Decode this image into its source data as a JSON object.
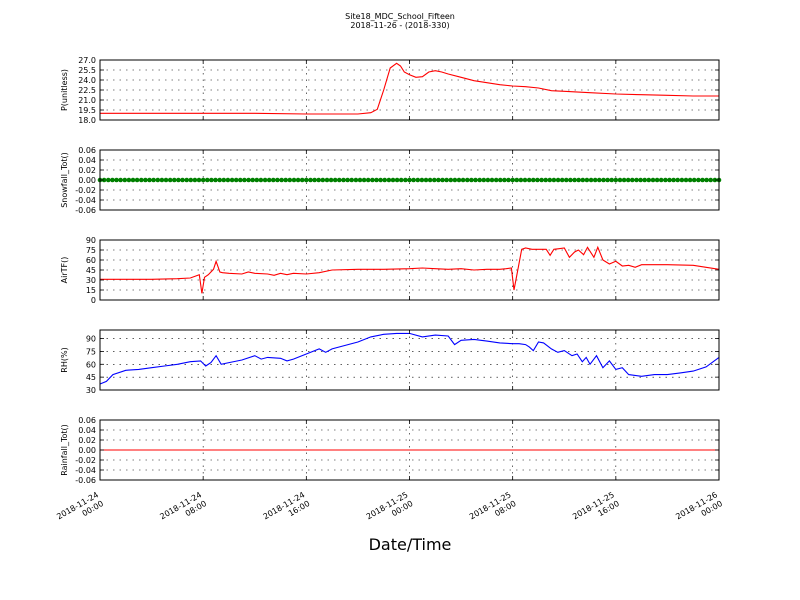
{
  "figure": {
    "title": "Site18_MDC_School_Fifteen",
    "subtitle": "2018-11-26 - (2018-330)",
    "xlabel": "Date/Time"
  },
  "chart_data": [
    {
      "type": "line",
      "ylabel": "P(unitless)",
      "ylim": [
        18.0,
        27.0
      ],
      "yticks": [
        "27.0",
        "25.5",
        "24.0",
        "22.5",
        "21.0",
        "19.5",
        "18.0"
      ],
      "xlim_hours": [
        0,
        48
      ],
      "color": "#ff0000",
      "grid": true,
      "series": [
        {
          "x_hours": [
            0,
            4,
            8,
            12,
            16,
            20,
            21,
            21.5,
            22,
            22.5,
            23,
            23.3,
            23.6,
            24,
            24.5,
            25,
            25.5,
            26,
            26.5,
            27,
            28,
            29,
            30,
            31,
            32,
            33,
            34,
            35,
            36,
            38,
            40,
            42,
            44,
            46,
            48
          ],
          "y": [
            19.0,
            19.0,
            19.0,
            19.0,
            18.9,
            18.9,
            19.1,
            19.6,
            22.5,
            25.8,
            26.5,
            26.1,
            25.2,
            24.8,
            24.4,
            24.5,
            25.2,
            25.4,
            25.2,
            24.9,
            24.4,
            23.9,
            23.6,
            23.3,
            23.1,
            23.0,
            22.8,
            22.4,
            22.3,
            22.1,
            21.9,
            21.8,
            21.7,
            21.6,
            21.6
          ]
        }
      ]
    },
    {
      "type": "line",
      "ylabel": "Snowfall_Tot()",
      "ylim": [
        -0.06,
        0.06
      ],
      "yticks": [
        "0.06",
        "0.04",
        "0.02",
        "0.00",
        "-0.02",
        "-0.04",
        "-0.06"
      ],
      "xlim_hours": [
        0,
        48
      ],
      "color": "#008000",
      "marker": true,
      "grid": true,
      "series": [
        {
          "x_hours": [
            0,
            48
          ],
          "y": [
            0.0,
            0.0
          ]
        }
      ]
    },
    {
      "type": "line",
      "ylabel": "AirTF()",
      "ylim": [
        0,
        90
      ],
      "yticks": [
        "90",
        "75",
        "60",
        "45",
        "30",
        "15",
        "0"
      ],
      "xlim_hours": [
        0,
        48
      ],
      "color": "#ff0000",
      "grid": true,
      "series": [
        {
          "x_hours": [
            0,
            2,
            4,
            6,
            7,
            7.7,
            7.9,
            8.1,
            8.4,
            8.8,
            9.0,
            9.3,
            9.5,
            10,
            11,
            11.5,
            12,
            13,
            13.5,
            14,
            14.5,
            15,
            16,
            17,
            18,
            20,
            22,
            24,
            25,
            26,
            27,
            28,
            29,
            30,
            31,
            31.5,
            31.9,
            32.1,
            32.4,
            32.7,
            33,
            33.5,
            34,
            34.6,
            34.9,
            35.2,
            35.6,
            36,
            36.4,
            36.8,
            37.1,
            37.5,
            37.8,
            38.3,
            38.6,
            39,
            39.5,
            40,
            40.5,
            41,
            41.5,
            42,
            44,
            46,
            48
          ],
          "y": [
            31,
            31,
            31,
            32,
            33,
            38,
            10,
            34,
            38,
            46,
            58,
            42,
            41,
            40,
            39,
            42,
            40,
            39,
            37,
            40,
            38,
            40,
            39,
            41,
            45,
            46,
            46,
            47,
            48,
            47,
            46,
            47,
            45,
            46,
            46,
            47,
            48,
            15,
            45,
            76,
            78,
            76,
            76,
            76,
            67,
            76,
            77,
            78,
            64,
            72,
            75,
            68,
            79,
            64,
            79,
            60,
            54,
            58,
            51,
            52,
            49,
            53,
            53,
            52,
            46
          ]
        }
      ]
    },
    {
      "type": "line",
      "ylabel": "RH(%)",
      "ylim": [
        30,
        100
      ],
      "yticks": [
        "90",
        "75",
        "60",
        "45",
        "30"
      ],
      "xlim_hours": [
        0,
        48
      ],
      "color": "#0000ff",
      "grid": true,
      "series": [
        {
          "x_hours": [
            0,
            0.5,
            1,
            2,
            3,
            4,
            5,
            6,
            7,
            7.8,
            8.2,
            8.6,
            9,
            9.4,
            10,
            11,
            12,
            12.5,
            13,
            14,
            14.5,
            15,
            16,
            17,
            17.5,
            18,
            20,
            21,
            22,
            23,
            24,
            25,
            26,
            27,
            27.5,
            28,
            29,
            30,
            31,
            32,
            32.5,
            33,
            33.3,
            33.6,
            34,
            34.4,
            35,
            35.5,
            36,
            36.6,
            37,
            37.4,
            37.7,
            38,
            38.5,
            39,
            39.5,
            40,
            40.5,
            41,
            42,
            43,
            44,
            45,
            46,
            47,
            48
          ],
          "y": [
            37,
            40,
            48,
            53,
            54,
            56,
            58,
            60,
            63,
            64,
            58,
            62,
            70,
            60,
            62,
            65,
            70,
            66,
            68,
            67,
            64,
            66,
            72,
            78,
            74,
            78,
            86,
            92,
            95,
            96,
            96,
            92,
            94,
            93,
            83,
            88,
            89,
            87,
            85,
            84,
            84,
            83,
            80,
            76,
            86,
            85,
            78,
            74,
            76,
            70,
            72,
            63,
            68,
            60,
            70,
            56,
            64,
            54,
            56,
            48,
            46,
            48,
            48,
            50,
            52,
            57,
            68
          ]
        }
      ]
    },
    {
      "type": "line",
      "ylabel": "Rainfall_Tot()",
      "ylim": [
        -0.06,
        0.06
      ],
      "yticks": [
        "0.06",
        "0.04",
        "0.02",
        "0.00",
        "-0.02",
        "-0.04",
        "-0.06"
      ],
      "xlim_hours": [
        0,
        48
      ],
      "color": "#ff0000",
      "grid": true,
      "series": [
        {
          "x_hours": [
            0,
            48
          ],
          "y": [
            0.0,
            0.0
          ]
        }
      ]
    }
  ],
  "xticks": [
    {
      "hours": 0,
      "line1": "2018-11-24",
      "line2": "00:00"
    },
    {
      "hours": 8,
      "line1": "2018-11-24",
      "line2": "08:00"
    },
    {
      "hours": 16,
      "line1": "2018-11-24",
      "line2": "16:00"
    },
    {
      "hours": 24,
      "line1": "2018-11-25",
      "line2": "00:00"
    },
    {
      "hours": 32,
      "line1": "2018-11-25",
      "line2": "08:00"
    },
    {
      "hours": 40,
      "line1": "2018-11-25",
      "line2": "16:00"
    },
    {
      "hours": 48,
      "line1": "2018-11-26",
      "line2": "00:00"
    }
  ]
}
